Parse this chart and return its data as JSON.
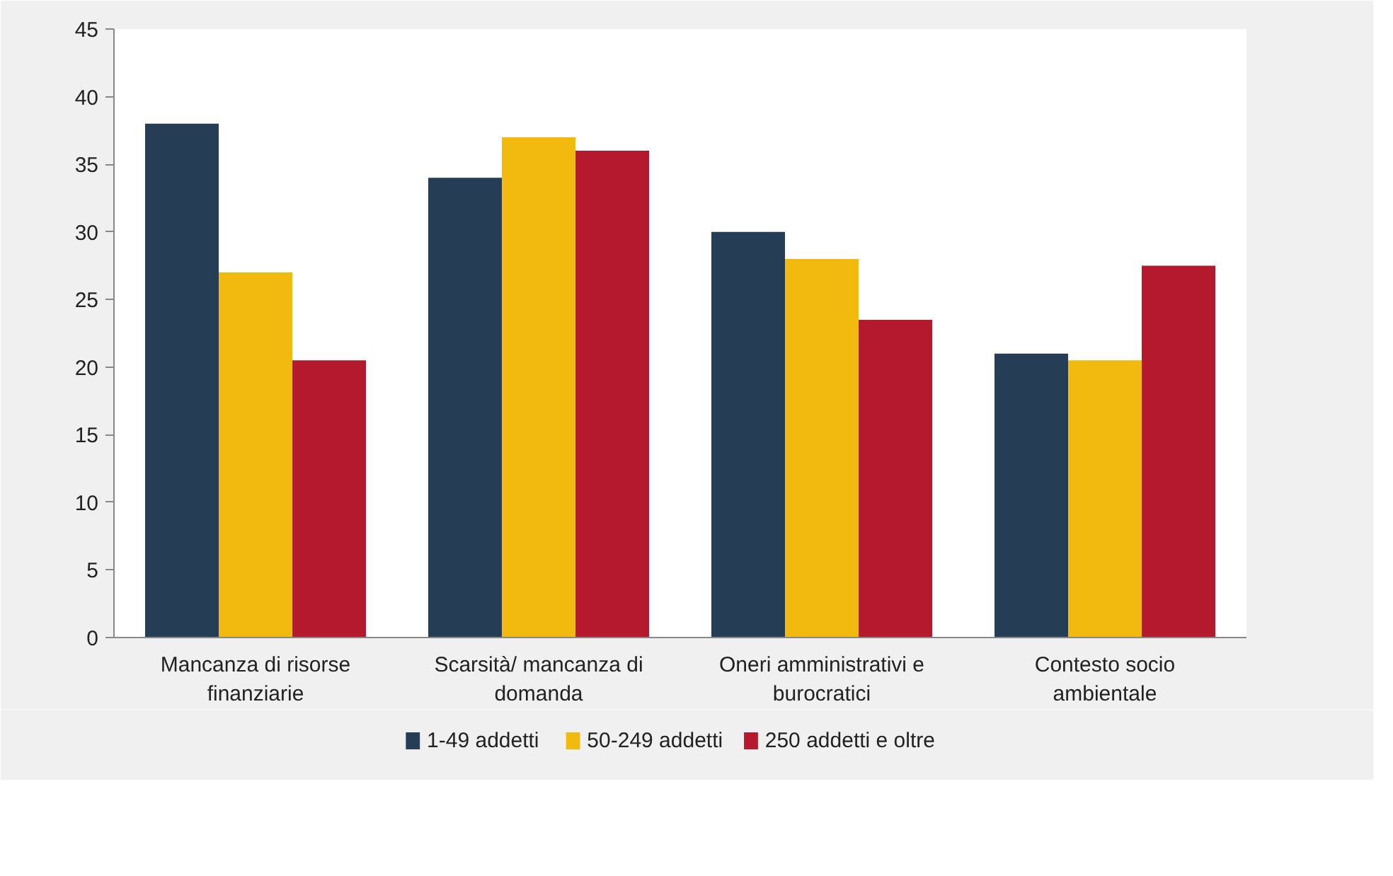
{
  "chart_data": {
    "type": "bar",
    "categories": [
      "Mancanza di risorse finanziarie",
      "Scarsità/ mancanza di domanda",
      "Oneri amministrativi e burocratici",
      "Contesto socio ambientale"
    ],
    "series": [
      {
        "name": "1-49 addetti",
        "color": "#253d55",
        "values": [
          38,
          34,
          30,
          21
        ]
      },
      {
        "name": "50-249 addetti",
        "color": "#f2b90f",
        "values": [
          27,
          37,
          28,
          20.5
        ]
      },
      {
        "name": "250 addetti e oltre",
        "color": "#b5192d",
        "values": [
          20.5,
          36,
          23.5,
          27.5
        ]
      }
    ],
    "ylim": [
      0,
      45
    ],
    "yticks": [
      0,
      5,
      10,
      15,
      20,
      25,
      30,
      35,
      40,
      45
    ],
    "grid": false,
    "legend": "bottom"
  }
}
